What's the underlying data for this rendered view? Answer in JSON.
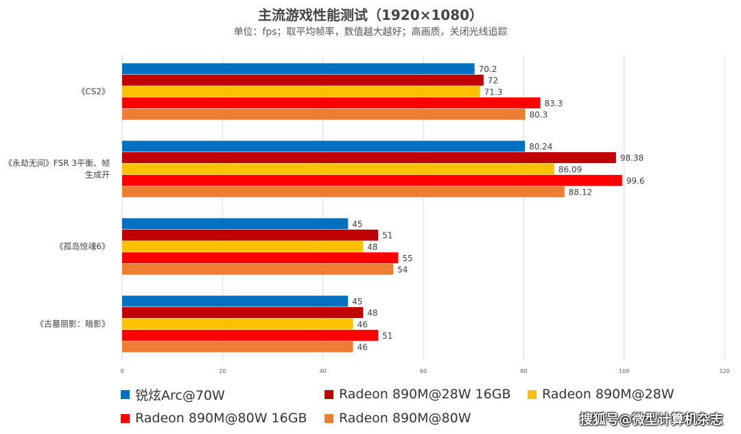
{
  "chart_data": {
    "type": "bar",
    "orientation": "horizontal",
    "title": "主流游戏性能测试（1920×1080）",
    "subtitle": "单位：fps；取平均帧率，数值越大越好；高画质，关闭光线追踪",
    "categories": [
      "《CS2》",
      "《永劫无间》FSR 3平衡、帧生成开",
      "《孤岛惊魂6》",
      "《古墓丽影：暗影》"
    ],
    "category_lines": [
      [
        "《CS2》"
      ],
      [
        "《永劫无间》FSR 3平衡、帧",
        "生成开"
      ],
      [
        "《孤岛惊魂6》"
      ],
      [
        "《古墓丽影：暗影》"
      ]
    ],
    "series": [
      {
        "name": "锐炫Arc@70W",
        "color": "#0070c0",
        "values": [
          70.2,
          80.24,
          45,
          45
        ],
        "labels": [
          "70.2",
          "80.24",
          "45",
          "45"
        ]
      },
      {
        "name": "Radeon 890M@28W 16GB",
        "color": "#c00000",
        "values": [
          72,
          98.38,
          51,
          48
        ],
        "labels": [
          "72",
          "98.38",
          "51",
          "48"
        ]
      },
      {
        "name": "Radeon 890M@28W",
        "color": "#ffc000",
        "values": [
          71.3,
          86.09,
          48,
          46
        ],
        "labels": [
          "71.3",
          "86.09",
          "48",
          "46"
        ]
      },
      {
        "name": "Radeon 890M@80W 16GB",
        "color": "#ff0000",
        "values": [
          83.3,
          99.6,
          55,
          51
        ],
        "labels": [
          "83.3",
          "99.6",
          "55",
          "51"
        ]
      },
      {
        "name": "Radeon 890M@80W",
        "color": "#ed7d31",
        "values": [
          80.3,
          88.12,
          54,
          46
        ],
        "labels": [
          "80.3",
          "88.12",
          "54",
          "46"
        ]
      }
    ],
    "xlim": [
      0,
      120
    ],
    "xticks": [
      "0",
      "20",
      "40",
      "60",
      "80",
      "100",
      "120"
    ],
    "grid": true,
    "legend_position": "bottom"
  },
  "watermark": "搜狐号@微型计算机杂志"
}
